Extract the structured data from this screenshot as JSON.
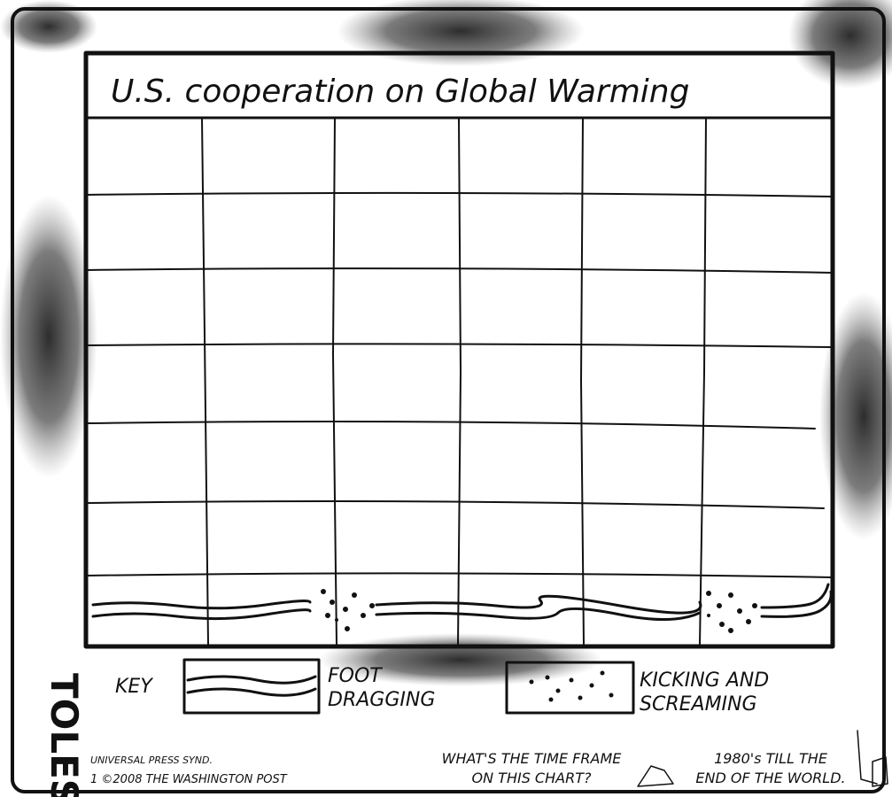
{
  "title": "U.S. cooperation on Global Warming",
  "key": {
    "label": "KEY",
    "items": [
      {
        "lines": [
          "FOOT",
          "DRAGGING"
        ]
      },
      {
        "lines": [
          "KICKING AND",
          "SCREAMING"
        ]
      }
    ]
  },
  "signature": "TOLES",
  "credits": [
    "UNIVERSAL PRESS SYND.",
    "1 ©2008 THE WASHINGTON POST"
  ],
  "dialogue": [
    {
      "lines": [
        "WHAT'S THE TIME FRAME",
        "ON THIS CHART?"
      ]
    },
    {
      "lines": [
        "1980's TILL THE",
        "END OF THE WORLD."
      ]
    }
  ]
}
